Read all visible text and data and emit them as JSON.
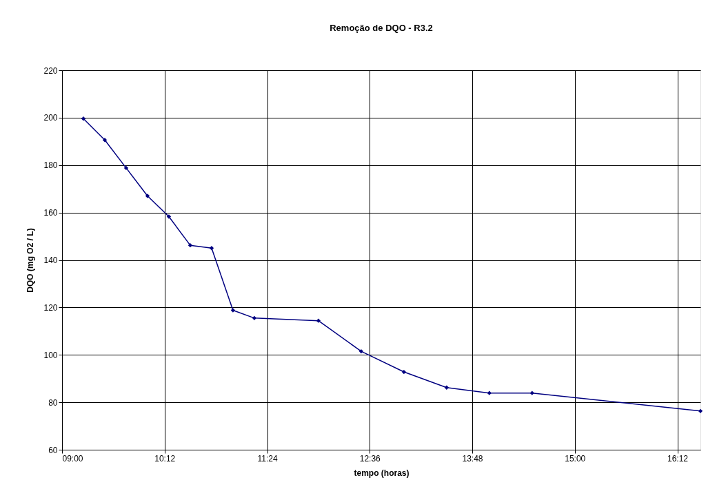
{
  "chart_data": {
    "type": "line",
    "title": "Remoção de DQO - R3.2",
    "xlabel": "tempo (horas)",
    "ylabel": "DQO (mg O2 / L)",
    "x": [
      9.25,
      9.5,
      9.75,
      10.0,
      10.25,
      10.5,
      10.75,
      11.0,
      11.25,
      12.0,
      12.5,
      13.0,
      13.5,
      14.0,
      14.5,
      16.47
    ],
    "series": [
      {
        "color": "#000080",
        "values": [
          199.6,
          190.6,
          178.8,
          167.0,
          158.3,
          146.2,
          145.0,
          118.8,
          115.5,
          114.4,
          101.5,
          92.8,
          86.2,
          83.9,
          83.9,
          76.3
        ]
      }
    ],
    "xlim": [
      9.0,
      16.47
    ],
    "xticks": [
      {
        "value": 9.0,
        "label": "09:00"
      },
      {
        "value": 10.2,
        "label": "10:12"
      },
      {
        "value": 11.4,
        "label": "11:24"
      },
      {
        "value": 12.6,
        "label": "12:36"
      },
      {
        "value": 13.8,
        "label": "13:48"
      },
      {
        "value": 15.0,
        "label": "15:00"
      },
      {
        "value": 16.2,
        "label": "16:12"
      }
    ],
    "ylim": [
      60,
      220
    ],
    "yticks": [
      60,
      80,
      100,
      120,
      140,
      160,
      180,
      200,
      220
    ],
    "grid": true,
    "marker": "diamond",
    "line_style": "solid"
  }
}
